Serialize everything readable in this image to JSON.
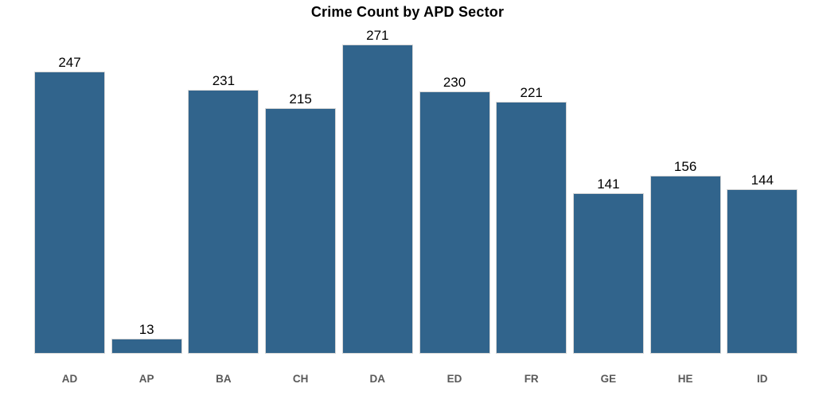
{
  "chart_data": {
    "type": "bar",
    "title": "Crime Count by APD Sector",
    "categories": [
      "AD",
      "AP",
      "BA",
      "CH",
      "DA",
      "ED",
      "FR",
      "GE",
      "HE",
      "ID"
    ],
    "values": [
      247,
      13,
      231,
      215,
      271,
      230,
      221,
      141,
      156,
      144
    ],
    "xlabel": "",
    "ylabel": "",
    "ylim": [
      0,
      280
    ],
    "grid": false,
    "legend": "none",
    "value_labels_shown": true,
    "colors": {
      "bar_fill": "#31648C",
      "bar_edge": "#d6d6d6",
      "value_label": "#000000",
      "tick_label": "#595959",
      "title": "#000000",
      "background": "#ffffff"
    }
  }
}
